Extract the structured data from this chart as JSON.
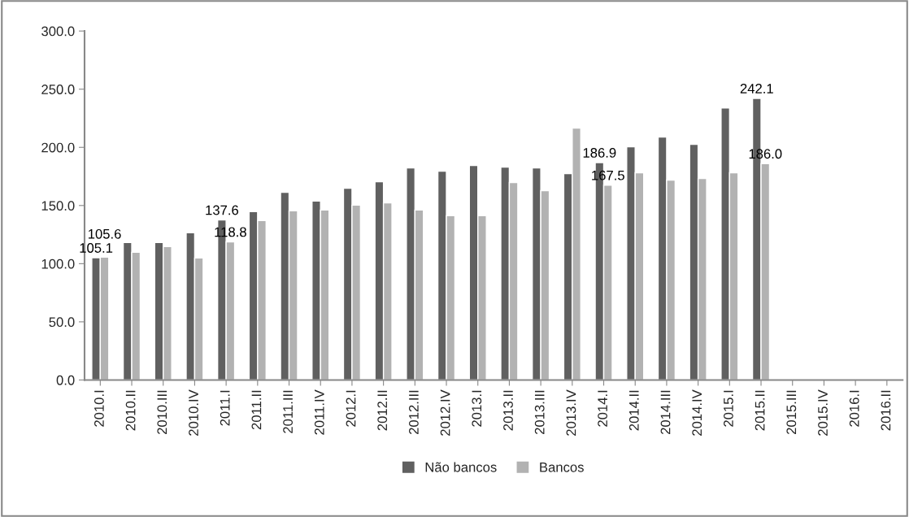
{
  "chart_data": {
    "type": "bar",
    "categories": [
      "2010.I",
      "2010.II",
      "2010.III",
      "2010.IV",
      "2011.I",
      "2011.II",
      "2011.III",
      "2011.IV",
      "2012.I",
      "2012.II",
      "2012.III",
      "2012.IV",
      "2013.I",
      "2013.II",
      "2013.III",
      "2013.IV",
      "2014.I",
      "2014.II",
      "2014.III",
      "2014.IV",
      "2015.I",
      "2015.II",
      "2015.III",
      "2015.IV",
      "2016.I",
      "2016.II"
    ],
    "series": [
      {
        "name": "Não bancos",
        "color": "#606060",
        "values": [
          105.1,
          118.2,
          118.2,
          126.6,
          137.6,
          144.7,
          161.4,
          153.8,
          164.9,
          170.5,
          182.4,
          179.6,
          184.4,
          183.1,
          182.4,
          177.5,
          186.9,
          200.5,
          208.9,
          202.6,
          233.9,
          242.1,
          null,
          null,
          null,
          null
        ],
        "value_labels": [
          "105.1",
          null,
          null,
          null,
          "137.6",
          null,
          null,
          null,
          null,
          null,
          null,
          null,
          null,
          null,
          null,
          null,
          "186.9",
          null,
          null,
          null,
          null,
          "242.1",
          null,
          null,
          null,
          null
        ]
      },
      {
        "name": "Bancos",
        "color": "#b2b2b2",
        "values": [
          105.6,
          109.8,
          114.7,
          104.9,
          118.8,
          137.0,
          145.4,
          146.1,
          150.3,
          152.3,
          146.1,
          141.2,
          141.2,
          169.8,
          162.8,
          216.5,
          167.5,
          178.2,
          171.9,
          173.3,
          178.2,
          186.0,
          null,
          null,
          null,
          null
        ],
        "value_labels": [
          "105.6",
          null,
          null,
          null,
          "118.8",
          null,
          null,
          null,
          null,
          null,
          null,
          null,
          null,
          null,
          null,
          null,
          "167.5",
          null,
          null,
          null,
          null,
          "186.0",
          null,
          null,
          null,
          null
        ]
      }
    ],
    "ylim": [
      0,
      300
    ],
    "yticks": [
      {
        "value": 0,
        "label": "0.0"
      },
      {
        "value": 50,
        "label": "50.0"
      },
      {
        "value": 100,
        "label": "100.0"
      },
      {
        "value": 150,
        "label": "150.0"
      },
      {
        "value": 200,
        "label": "200.0"
      },
      {
        "value": 250,
        "label": "250.0"
      },
      {
        "value": 300,
        "label": "300.0"
      }
    ],
    "grid": false,
    "legend": "bottom"
  }
}
